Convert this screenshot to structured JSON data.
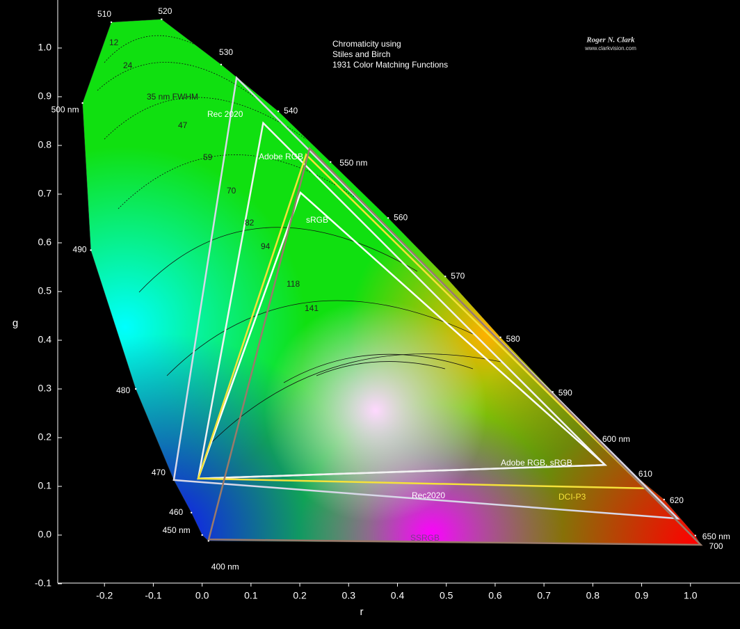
{
  "chart_data": {
    "type": "line",
    "title": [
      "Chromaticity using",
      "Stiles and Birch",
      "1931 Color Matching Functions"
    ],
    "credit": [
      "Roger N. Clark",
      "www.clarkvision.com"
    ],
    "xlabel": "r",
    "ylabel": "g",
    "xlim": [
      -0.3,
      1.1
    ],
    "ylim": [
      -0.1,
      1.1
    ],
    "xticks": [
      -0.2,
      -0.1,
      {
        "value": 0,
        "label": "0.0"
      },
      0.1,
      0.2,
      0.3,
      0.4,
      0.5,
      0.6,
      0.7,
      0.8,
      0.9,
      {
        "value": 1,
        "label": "1.0"
      }
    ],
    "yticks": [
      -0.1,
      {
        "value": 0,
        "label": "0.0"
      },
      0.1,
      0.2,
      0.3,
      0.4,
      0.5,
      0.6,
      0.7,
      0.8,
      0.9,
      {
        "value": 1,
        "label": "1.0"
      }
    ],
    "locus": {
      "x": [
        0.013,
        0.0,
        -0.022,
        -0.058,
        -0.136,
        -0.228,
        -0.245,
        -0.186,
        -0.083,
        0.039,
        0.156,
        0.263,
        0.381,
        0.498,
        0.611,
        0.718,
        0.808,
        0.882,
        0.946,
        1.01,
        1.021
      ],
      "y": [
        -0.012,
        0.0,
        0.046,
        0.113,
        0.3,
        0.585,
        0.887,
        1.053,
        1.059,
        0.966,
        0.87,
        0.766,
        0.651,
        0.531,
        0.406,
        0.294,
        0.199,
        0.126,
        0.073,
        -0.001,
        -0.02
      ],
      "labels": [
        "400 nm",
        "450 nm",
        "460",
        "470",
        "480",
        "490",
        "500 nm",
        "510",
        "520",
        "530",
        "540",
        "550 nm",
        "560",
        "570",
        "580",
        "590",
        "600 nm",
        "610",
        "620",
        "650 nm",
        "700"
      ]
    },
    "series": [
      {
        "name": "sRGB",
        "color": "#ffffff",
        "x": [
          0.2014,
          0.825,
          -0.008
        ],
        "y": [
          0.703,
          0.144,
          0.116
        ]
      },
      {
        "name": "Adobe RGB",
        "color": "#f2f2f2",
        "x": [
          0.125,
          0.825,
          -0.008
        ],
        "y": [
          0.846,
          0.144,
          0.116
        ]
      },
      {
        "name": "DCI-P3",
        "color": "#f5e23a",
        "x": [
          0.213,
          0.907,
          -0.008
        ],
        "y": [
          0.781,
          0.096,
          0.116
        ]
      },
      {
        "name": "Rec2020",
        "color": "#d8d8e8",
        "x": [
          0.0705,
          0.974,
          -0.058
        ],
        "y": [
          0.939,
          0.034,
          0.113
        ]
      },
      {
        "name": "SSRGB",
        "color": "#9a7a6a",
        "x": [
          0.22,
          1.021,
          0.0135
        ],
        "y": [
          0.794,
          -0.02,
          -0.009
        ]
      }
    ],
    "annotations": [
      "Rec 2020",
      "Adobe RGB, sRGB",
      "12",
      "24",
      "35 nm FWHM",
      "47",
      "59",
      "70",
      "82",
      "94",
      "118",
      "141"
    ]
  }
}
